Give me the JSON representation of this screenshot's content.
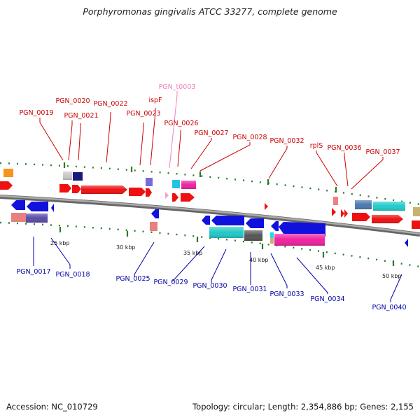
{
  "title": "Porphyromonas gingivalis ATCC 33277, complete genome",
  "footer": {
    "accession": "Accession: NC_010729",
    "summary": "Topology: circular; Length: 2,354,886 bp; Genes: 2,155"
  },
  "colors": {
    "forward_label": "#cc0000",
    "reverse_label": "#0000aa",
    "rna_label": "#f080c0",
    "backbone": "#888888",
    "tick": "#2a7a2a"
  },
  "scale_labels": [
    "25 kbp",
    "30 kbp",
    "35 kbp",
    "40 kbp",
    "45 kbp",
    "50 kbp"
  ],
  "forward_labels": [
    "PGN_0019",
    "PGN_0020",
    "PGN_0021",
    "PGN_0022",
    "ispF",
    "PGN_0023",
    "PGN_t0003",
    "PGN_0026",
    "PGN_0027",
    "PGN_0028",
    "PGN_0032",
    "rplS",
    "PGN_0036",
    "PGN_0037"
  ],
  "reverse_labels": [
    "PGN_0017",
    "PGN_0018",
    "PGN_0025",
    "PGN_0029",
    "PGN_0030",
    "PGN_0031",
    "PGN_0033",
    "PGN_0034",
    "PGN_0040"
  ]
}
